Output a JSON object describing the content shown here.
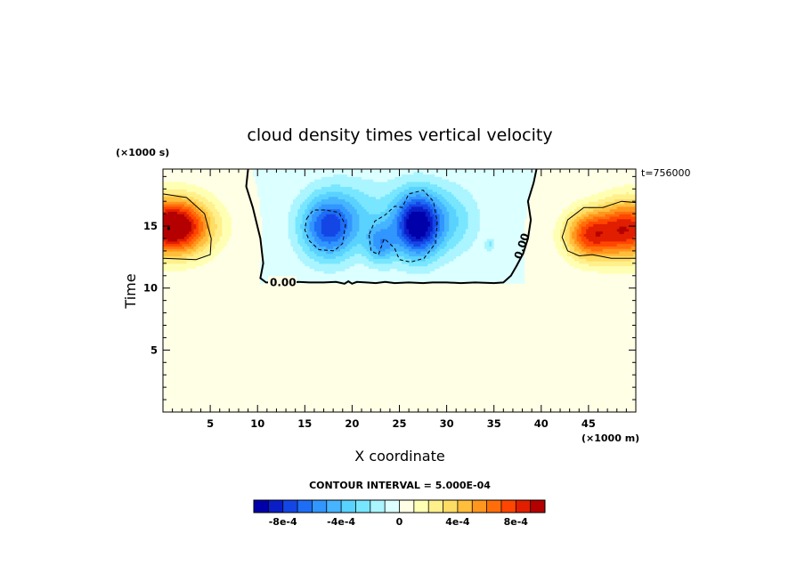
{
  "chart_data": {
    "type": "heatmap",
    "title": "cloud density times vertical velocity",
    "xlabel": "X coordinate",
    "ylabel": "Time",
    "x_units": "(×1000 m)",
    "y_units": "(×1000 s)",
    "time_stamp": "t=756000",
    "xlim": [
      0,
      50
    ],
    "ylim": [
      0,
      19.6
    ],
    "x_ticks": [
      5,
      10,
      15,
      20,
      25,
      30,
      35,
      40,
      45
    ],
    "y_ticks": [
      5,
      10,
      15
    ],
    "contour_interval_text": "CONTOUR INTERVAL = 5.000E-04",
    "contour_line_label": "0.00",
    "colorbar": {
      "levels": [
        -0.001,
        -0.0009,
        -0.0008,
        -0.0007,
        -0.0006,
        -0.0005,
        -0.0004,
        -0.0003,
        -0.0002,
        -0.0001,
        0,
        0.0001,
        0.0002,
        0.0003,
        0.0004,
        0.0005,
        0.0006,
        0.0007,
        0.0008,
        0.0009,
        0.001
      ],
      "colors": [
        "#0000aa",
        "#0a1ec8",
        "#1446e6",
        "#1e6ef5",
        "#3296ff",
        "#46b4ff",
        "#5ad2ff",
        "#78e6ff",
        "#aaf5ff",
        "#dcffff",
        "#ffffe6",
        "#ffffb4",
        "#fff08c",
        "#ffdc64",
        "#ffbe3c",
        "#ff961e",
        "#ff6e0a",
        "#ff4600",
        "#e11e00",
        "#b40000"
      ],
      "tick_values": [
        -0.0008,
        -0.0004,
        0,
        0.0004,
        0.0008
      ],
      "tick_labels": [
        "-8e-4",
        "-4e-4",
        "0",
        "4e-4",
        "8e-4"
      ]
    },
    "blobs": [
      {
        "x": 1.0,
        "y": 15.0,
        "sx": 4.0,
        "sy": 2.3,
        "amp": 0.00115
      },
      {
        "x": 45.0,
        "y": 14.3,
        "sx": 2.6,
        "sy": 2.0,
        "amp": 0.00072
      },
      {
        "x": 49.3,
        "y": 14.8,
        "sx": 3.2,
        "sy": 2.4,
        "amp": 0.00085
      },
      {
        "x": 17.5,
        "y": 14.9,
        "sx": 3.0,
        "sy": 2.6,
        "amp": -0.00068
      },
      {
        "x": 26.8,
        "y": 15.1,
        "sx": 2.4,
        "sy": 2.6,
        "amp": -0.0009
      },
      {
        "x": 23.0,
        "y": 13.6,
        "sx": 1.6,
        "sy": 1.6,
        "amp": -0.00045
      },
      {
        "x": 30.0,
        "y": 15.5,
        "sx": 3.4,
        "sy": 2.8,
        "amp": -0.0003
      },
      {
        "x": 21.0,
        "y": 16.3,
        "sx": 5.0,
        "sy": 2.8,
        "amp": -0.0002
      },
      {
        "x": 34.6,
        "y": 13.5,
        "sx": 0.5,
        "sy": 0.5,
        "amp": -0.0002
      }
    ],
    "zero_contours": [
      [
        [
          9.0,
          19.6
        ],
        [
          8.8,
          18.2
        ],
        [
          9.5,
          16.5
        ],
        [
          10.3,
          14.0
        ],
        [
          10.6,
          12.0
        ],
        [
          10.3,
          10.8
        ],
        [
          10.9,
          10.45
        ],
        [
          12.0,
          10.45
        ],
        [
          13.5,
          10.4
        ],
        [
          14.3,
          10.5
        ],
        [
          15.5,
          10.45
        ],
        [
          17.0,
          10.45
        ],
        [
          18.3,
          10.5
        ],
        [
          19.2,
          10.35
        ],
        [
          19.6,
          10.55
        ],
        [
          20.0,
          10.35
        ],
        [
          20.5,
          10.5
        ],
        [
          21.5,
          10.45
        ],
        [
          22.5,
          10.4
        ],
        [
          23.5,
          10.5
        ],
        [
          24.5,
          10.4
        ],
        [
          26.0,
          10.45
        ],
        [
          27.5,
          10.4
        ],
        [
          28.5,
          10.45
        ],
        [
          30.0,
          10.45
        ],
        [
          31.5,
          10.4
        ],
        [
          33.0,
          10.45
        ],
        [
          35.0,
          10.4
        ],
        [
          36.0,
          10.45
        ],
        [
          36.8,
          11.0
        ],
        [
          37.4,
          11.8
        ],
        [
          38.1,
          12.8
        ],
        [
          38.6,
          14.0
        ],
        [
          38.9,
          15.5
        ],
        [
          38.6,
          17.0
        ],
        [
          39.2,
          18.5
        ],
        [
          39.5,
          19.6
        ]
      ]
    ],
    "pos_contours": [
      [
        [
          0,
          17.6
        ],
        [
          2.5,
          17.3
        ],
        [
          4.4,
          16.0
        ],
        [
          5.1,
          14.0
        ],
        [
          5.0,
          12.7
        ],
        [
          3.5,
          12.3
        ],
        [
          0,
          12.4
        ]
      ],
      [
        [
          50,
          12.4
        ],
        [
          47.4,
          12.4
        ],
        [
          45.4,
          12.7
        ],
        [
          44.0,
          12.6
        ],
        [
          42.8,
          13.0
        ],
        [
          42.2,
          14.1
        ],
        [
          42.8,
          15.5
        ],
        [
          44.5,
          16.5
        ],
        [
          46.5,
          16.5
        ],
        [
          48.5,
          17.0
        ],
        [
          50,
          16.9
        ]
      ]
    ],
    "neg_contours": [
      [
        [
          15.2,
          15.6
        ],
        [
          15.9,
          16.3
        ],
        [
          17.2,
          16.3
        ],
        [
          18.6,
          16.1
        ],
        [
          19.3,
          15.1
        ],
        [
          19.0,
          13.6
        ],
        [
          18.1,
          13.0
        ],
        [
          16.5,
          13.1
        ],
        [
          15.5,
          13.8
        ],
        [
          15.0,
          14.7
        ],
        [
          15.2,
          15.6
        ]
      ],
      [
        [
          21.8,
          14.3
        ],
        [
          22.0,
          13.0
        ],
        [
          22.8,
          12.7
        ],
        [
          23.4,
          14.0
        ],
        [
          24.5,
          13.2
        ],
        [
          25.0,
          12.3
        ],
        [
          26.2,
          12.1
        ],
        [
          27.6,
          12.4
        ],
        [
          28.8,
          13.6
        ],
        [
          29.0,
          15.3
        ],
        [
          28.6,
          17.0
        ],
        [
          27.5,
          17.9
        ],
        [
          26.0,
          17.6
        ],
        [
          25.3,
          16.5
        ],
        [
          24.5,
          16.6
        ],
        [
          23.5,
          15.9
        ],
        [
          22.4,
          15.4
        ],
        [
          21.8,
          14.3
        ]
      ]
    ]
  }
}
